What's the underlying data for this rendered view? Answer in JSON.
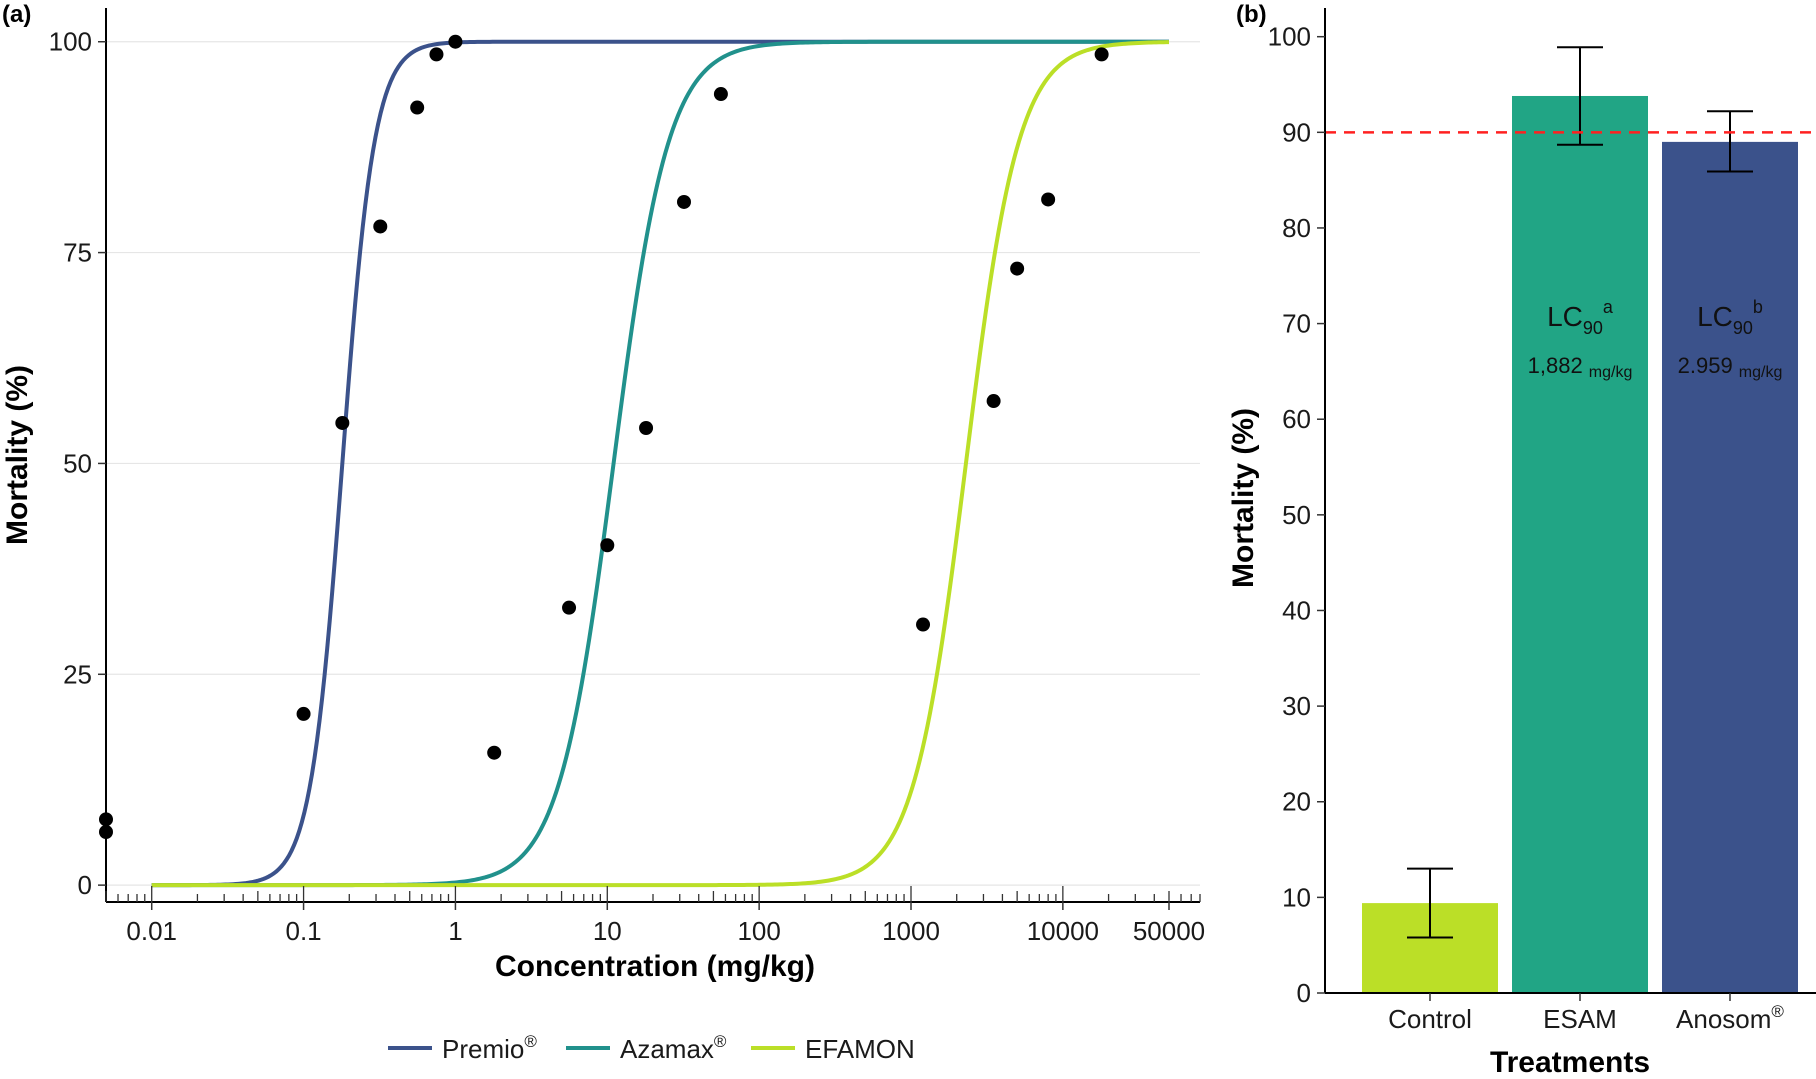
{
  "panels": {
    "a_label": "(a)",
    "b_label": "(b)"
  },
  "chart_data": [
    {
      "type": "line",
      "panel": "(a)",
      "xlabel": "Concentration (mg/kg)",
      "ylabel": "Mortality (%)",
      "x_scale": "log",
      "xlim": [
        0.005,
        80000
      ],
      "ylim": [
        -2,
        104
      ],
      "x_ticks": [
        0.01,
        0.1,
        1,
        10,
        100,
        1000,
        10000,
        50000
      ],
      "x_tick_labels": [
        "0.01",
        "0.1",
        "1",
        "10",
        "100",
        "1000",
        "10000",
        "50000"
      ],
      "y_ticks": [
        0,
        25,
        50,
        75,
        100
      ],
      "y_tick_labels": [
        "0",
        "25",
        "50",
        "75",
        "100"
      ],
      "grid": "horizontal",
      "legend_position": "bottom",
      "series": [
        {
          "name": "Premio®",
          "name_base": "Premio",
          "name_sup": "®",
          "color": "#3b528b",
          "curve": {
            "ec50": 0.18,
            "slope": 4.1,
            "x_from": 0.01,
            "x_to": 50000
          },
          "points": [
            {
              "x": 0.1,
              "y": 20.3
            },
            {
              "x": 0.18,
              "y": 54.8
            },
            {
              "x": 0.32,
              "y": 78.1
            },
            {
              "x": 0.56,
              "y": 92.2
            },
            {
              "x": 0.75,
              "y": 98.5
            },
            {
              "x": 1.0,
              "y": 100.0
            }
          ]
        },
        {
          "name": "Azamax®",
          "name_base": "Azamax",
          "name_sup": "®",
          "color": "#21918c",
          "curve": {
            "ec50": 11.0,
            "slope": 2.4,
            "x_from": 0.01,
            "x_to": 50000
          },
          "points": [
            {
              "x": 1.8,
              "y": 15.7
            },
            {
              "x": 5.6,
              "y": 32.9
            },
            {
              "x": 10.0,
              "y": 40.3
            },
            {
              "x": 18.0,
              "y": 54.2
            },
            {
              "x": 32.0,
              "y": 81.0
            },
            {
              "x": 56.0,
              "y": 93.8
            }
          ]
        },
        {
          "name": "EFAMON",
          "name_base": "EFAMON",
          "name_sup": "",
          "color": "#bbdf27",
          "curve": {
            "ec50": 2300,
            "slope": 2.5,
            "x_from": 0.01,
            "x_to": 50000
          },
          "points": [
            {
              "x": 1200,
              "y": 30.9
            },
            {
              "x": 3500,
              "y": 57.4
            },
            {
              "x": 5000,
              "y": 73.1
            },
            {
              "x": 8000,
              "y": 81.3
            },
            {
              "x": 18000,
              "y": 98.5
            }
          ]
        }
      ],
      "control_points": [
        {
          "x": 0.005,
          "y": 7.8
        },
        {
          "x": 0.005,
          "y": 6.3
        }
      ]
    },
    {
      "type": "bar",
      "panel": "(b)",
      "xlabel": "Treatments",
      "ylabel": "Mortality (%)",
      "ylim": [
        0,
        103
      ],
      "y_ticks": [
        0,
        10,
        20,
        30,
        40,
        50,
        60,
        70,
        80,
        90,
        100
      ],
      "y_tick_labels": [
        "0",
        "10",
        "20",
        "30",
        "40",
        "50",
        "60",
        "70",
        "80",
        "90",
        "100"
      ],
      "reference_line": {
        "y": 90,
        "color": "#ff2020",
        "style": "dashed"
      },
      "bars": [
        {
          "category": "Control",
          "label_base": "Control",
          "label_sup": "",
          "value": 9.4,
          "err_low": 5.8,
          "err_high": 13.0,
          "color": "#bbdf27",
          "annotation": null
        },
        {
          "category": "ESAM",
          "label_base": "ESAM",
          "label_sup": "",
          "value": 93.8,
          "err_low": 88.7,
          "err_high": 98.9,
          "color": "#21a585",
          "annotation": {
            "lc_base": "LC",
            "lc_sub": "90",
            "lc_sup": "a",
            "value": "1,882",
            "unit": "mg/kg"
          }
        },
        {
          "category": "Anosom®",
          "label_base": "Anosom",
          "label_sup": "®",
          "value": 89.0,
          "err_low": 85.9,
          "err_high": 92.2,
          "color": "#3b528b",
          "annotation": {
            "lc_base": "LC",
            "lc_sub": "90",
            "lc_sup": "b",
            "value": "2.959",
            "unit": "mg/kg"
          }
        }
      ]
    }
  ]
}
